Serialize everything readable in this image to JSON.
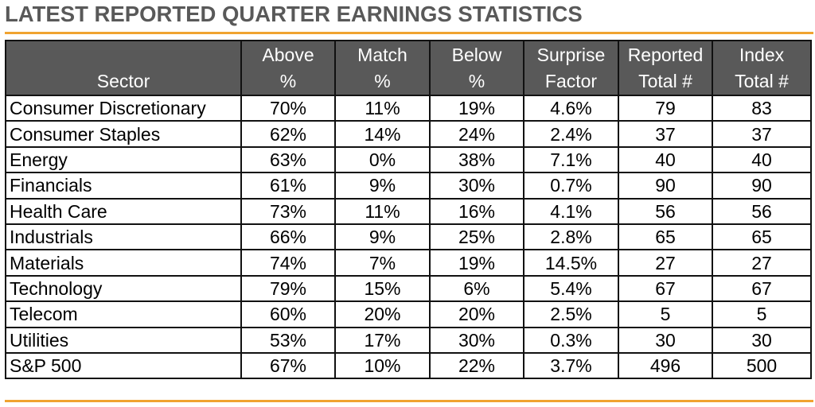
{
  "title": "LATEST REPORTED QUARTER EARNINGS STATISTICS",
  "colors": {
    "accent_rule": "#F0A330",
    "header_bg": "#595959",
    "header_text": "#FFFFFF",
    "title_text": "#595959"
  },
  "chart_data": {
    "type": "table",
    "title": "LATEST REPORTED QUARTER EARNINGS STATISTICS",
    "columns": [
      {
        "line1": "",
        "line2": "Sector"
      },
      {
        "line1": "Above",
        "line2": "%"
      },
      {
        "line1": "Match",
        "line2": "%"
      },
      {
        "line1": "Below",
        "line2": "%"
      },
      {
        "line1": "Surprise",
        "line2": "Factor"
      },
      {
        "line1": "Reported",
        "line2": "Total #"
      },
      {
        "line1": "Index",
        "line2": "Total #"
      }
    ],
    "rows": [
      [
        "Consumer Discretionary",
        "70%",
        "11%",
        "19%",
        "4.6%",
        "79",
        "83"
      ],
      [
        "Consumer Staples",
        "62%",
        "14%",
        "24%",
        "2.4%",
        "37",
        "37"
      ],
      [
        "Energy",
        "63%",
        "0%",
        "38%",
        "7.1%",
        "40",
        "40"
      ],
      [
        "Financials",
        "61%",
        "9%",
        "30%",
        "0.7%",
        "90",
        "90"
      ],
      [
        "Health Care",
        "73%",
        "11%",
        "16%",
        "4.1%",
        "56",
        "56"
      ],
      [
        "Industrials",
        "66%",
        "9%",
        "25%",
        "2.8%",
        "65",
        "65"
      ],
      [
        "Materials",
        "74%",
        "7%",
        "19%",
        "14.5%",
        "27",
        "27"
      ],
      [
        "Technology",
        "79%",
        "15%",
        "6%",
        "5.4%",
        "67",
        "67"
      ],
      [
        "Telecom",
        "60%",
        "20%",
        "20%",
        "2.5%",
        "5",
        "5"
      ],
      [
        "Utilities",
        "53%",
        "17%",
        "30%",
        "0.3%",
        "30",
        "30"
      ],
      [
        "S&P 500",
        "67%",
        "10%",
        "22%",
        "3.7%",
        "496",
        "500"
      ]
    ]
  }
}
